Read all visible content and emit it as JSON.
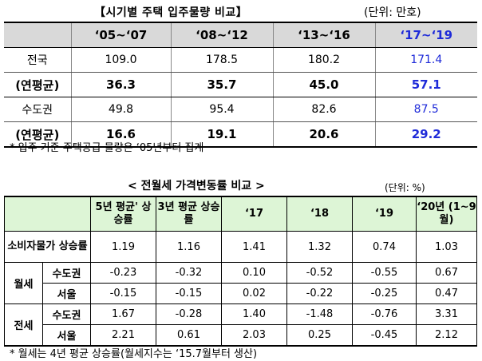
{
  "table1": {
    "title": "【시기별 주택 입주물량 비교】",
    "unit": "(단위: 만호)",
    "headers": [
      "",
      "‘05~‘07",
      "‘08~‘12",
      "‘13~‘16",
      "‘17~‘19"
    ],
    "rows": [
      [
        "전국",
        "109.0",
        "178.5",
        "180.2",
        "171.4"
      ],
      [
        "(연평균)",
        "36.3",
        "35.7",
        "45.0",
        "57.1"
      ],
      [
        "수도권",
        "49.8",
        "95.4",
        "82.6",
        "87.5"
      ],
      [
        "(연평균)",
        "16.6",
        "19.1",
        "20.6",
        "29.2"
      ]
    ],
    "note": "* 입주 기준 주택공급 물량은 ‘05년부터 집계",
    "highlight_color": "#1f2bd9"
  },
  "table2": {
    "title": "< 전월세 가격변동률 비교 >",
    "unit": "(단위: %)",
    "headers": [
      "5년 평균' 상승률",
      "3년 평균 상승률",
      "‘17",
      "‘18",
      "‘19",
      "‘20년 (1~9월)"
    ],
    "row_cpi": {
      "label": "소비자물가 상승률",
      "values": [
        "1.19",
        "1.16",
        "1.41",
        "1.32",
        "0.74",
        "1.03"
      ]
    },
    "groups": [
      {
        "label": "월세",
        "rows": [
          {
            "label": "수도권",
            "values": [
              "-0.23",
              "-0.32",
              "0.10",
              "-0.52",
              "-0.55",
              "0.67"
            ]
          },
          {
            "label": "서울",
            "values": [
              "-0.15",
              "-0.15",
              "0.02",
              "-0.22",
              "-0.25",
              "0.47"
            ]
          }
        ]
      },
      {
        "label": "전세",
        "rows": [
          {
            "label": "수도권",
            "values": [
              "1.67",
              "-0.28",
              "1.40",
              "-1.48",
              "-0.76",
              "3.31"
            ]
          },
          {
            "label": "서울",
            "values": [
              "2.21",
              "0.61",
              "2.03",
              "0.25",
              "-0.45",
              "2.12"
            ]
          }
        ]
      }
    ],
    "note": "* 월세는 4년 평균 상승률(월세지수는 ‘15.7월부터 생산)",
    "header_bg": "#ddf5d6"
  }
}
